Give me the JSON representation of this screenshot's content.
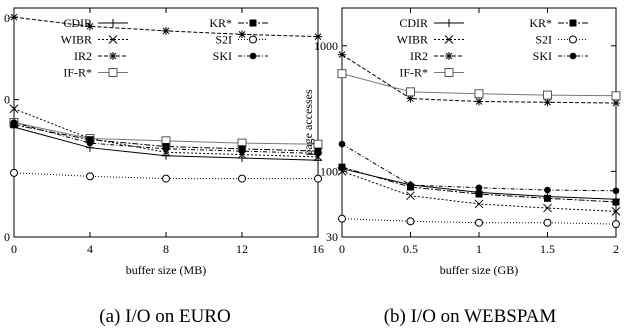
{
  "chart_data": [
    {
      "type": "line",
      "caption": "(a) I/O on EURO",
      "xlabel": "buffer size (MB)",
      "ylabel": "",
      "x": [
        0,
        4,
        8,
        12,
        16
      ],
      "xticks": [
        "0",
        "4",
        "8",
        "12",
        "16"
      ],
      "xlim": [
        0,
        16
      ],
      "yscale": "log",
      "yticks": [],
      "ytick_labels_visible": [
        "0",
        "0",
        "0"
      ],
      "grid": false,
      "legend_position": "top",
      "series": [
        {
          "name": "CDIR",
          "values": [
            0.48,
            0.39,
            0.355,
            0.345,
            0.335
          ]
        },
        {
          "name": "WIBR",
          "values": [
            0.56,
            0.43,
            0.37,
            0.36,
            0.35
          ]
        },
        {
          "name": "IR2",
          "values": [
            0.96,
            0.92,
            0.9,
            0.885,
            0.875
          ]
        },
        {
          "name": "IF-R*",
          "values": [
            0.5,
            0.43,
            0.42,
            0.41,
            0.405
          ]
        },
        {
          "name": "KR*",
          "values": [
            0.49,
            0.425,
            0.395,
            0.385,
            0.375
          ]
        },
        {
          "name": "S2I",
          "values": [
            0.28,
            0.265,
            0.255,
            0.255,
            0.255
          ]
        },
        {
          "name": "SKI",
          "values": [
            0.5,
            0.41,
            0.385,
            0.375,
            0.365
          ]
        }
      ]
    },
    {
      "type": "line",
      "caption": "(b) I/O on WEBSPAM",
      "xlabel": "buffer size (GB)",
      "ylabel": "page accesses",
      "x": [
        0,
        0.5,
        1,
        1.5,
        2
      ],
      "xticks": [
        "0",
        "0.5",
        "1",
        "1.5",
        "2"
      ],
      "xlim": [
        0,
        2
      ],
      "yscale": "log",
      "ylim": [
        30,
        2000
      ],
      "yticks": [
        30,
        100,
        1000
      ],
      "ytick_labels": [
        "30",
        "100",
        "1000"
      ],
      "grid": false,
      "legend_position": "top",
      "series": [
        {
          "name": "CDIR",
          "values": [
            105,
            78,
            68,
            63,
            60
          ]
        },
        {
          "name": "WIBR",
          "values": [
            100,
            64,
            55,
            51,
            48
          ]
        },
        {
          "name": "IR2",
          "values": [
            850,
            380,
            360,
            355,
            350
          ]
        },
        {
          "name": "IF-R*",
          "values": [
            600,
            430,
            415,
            405,
            400
          ]
        },
        {
          "name": "KR*",
          "values": [
            108,
            75,
            66,
            61,
            57
          ]
        },
        {
          "name": "S2I",
          "values": [
            42,
            40,
            39,
            39,
            38
          ]
        },
        {
          "name": "SKI",
          "values": [
            165,
            78,
            74,
            71,
            70
          ]
        }
      ]
    }
  ]
}
